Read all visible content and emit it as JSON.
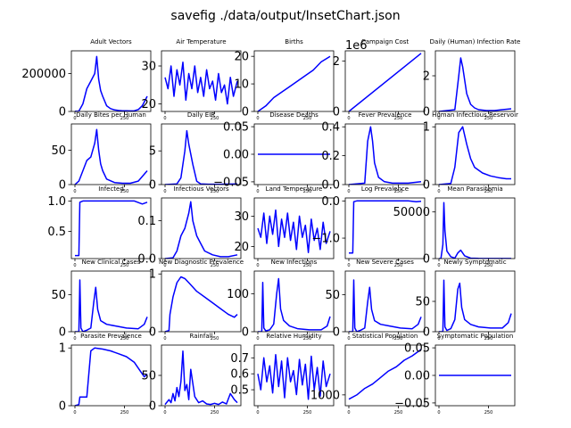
{
  "figure": {
    "suptitle": "savefig ./data/output/InsetChart.json"
  },
  "chart_data": [
    {
      "type": "line",
      "title": "Adult Vectors",
      "ylim": [
        0,
        320000
      ],
      "yticks": [
        0,
        200000
      ],
      "ytick_labels": [
        "0",
        "200000"
      ],
      "x": [
        0,
        20,
        40,
        60,
        80,
        100,
        110,
        120,
        130,
        140,
        160,
        180,
        200,
        220,
        240,
        260,
        280,
        300,
        320,
        340,
        365
      ],
      "values": [
        500,
        2000,
        40000,
        120000,
        160000,
        200000,
        290000,
        170000,
        110000,
        80000,
        30000,
        15000,
        8000,
        5000,
        4000,
        3500,
        3000,
        4000,
        10000,
        30000,
        80000
      ]
    },
    {
      "type": "line",
      "title": "Air Temperature",
      "ylim": [
        18,
        34
      ],
      "yticks": [
        20,
        30
      ],
      "ytick_labels": [
        "20",
        "30"
      ],
      "x": [
        0,
        15,
        30,
        45,
        60,
        75,
        90,
        105,
        120,
        135,
        150,
        165,
        180,
        195,
        210,
        225,
        240,
        255,
        270,
        285,
        300,
        315,
        330,
        345,
        365
      ],
      "values": [
        27,
        24,
        30,
        22,
        29,
        25,
        31,
        21,
        28,
        24,
        30,
        23,
        27,
        22,
        29,
        24,
        26,
        21,
        28,
        23,
        25,
        20,
        27,
        22,
        26
      ]
    },
    {
      "type": "line",
      "title": "Births",
      "ylim": [
        0,
        22
      ],
      "yticks": [
        0,
        10,
        20
      ],
      "ytick_labels": [
        "0",
        "10",
        "20"
      ],
      "x": [
        0,
        40,
        80,
        120,
        160,
        200,
        240,
        280,
        320,
        365
      ],
      "values": [
        0,
        2,
        5,
        7,
        9,
        11,
        13,
        15,
        18,
        20
      ]
    },
    {
      "type": "line",
      "title": "Campaign Cost",
      "ylim": [
        0,
        2.4
      ],
      "yticks": [
        0,
        2
      ],
      "ytick_labels": [
        "0",
        "2"
      ],
      "offset_text": "1e6",
      "x": [
        0,
        365
      ],
      "values": [
        0,
        2.3
      ]
    },
    {
      "type": "line",
      "title": "Daily (Human) Infection Rate",
      "ylim": [
        0,
        3.4
      ],
      "yticks": [
        0,
        2
      ],
      "ytick_labels": [
        "0",
        "2"
      ],
      "x": [
        0,
        80,
        100,
        110,
        120,
        140,
        160,
        180,
        200,
        240,
        280,
        320,
        365
      ],
      "values": [
        0,
        0.1,
        2.0,
        3.0,
        2.5,
        1.0,
        0.4,
        0.2,
        0.1,
        0.05,
        0.05,
        0.1,
        0.15
      ]
    },
    {
      "type": "line",
      "title": "Daily Bites per Human",
      "ylim": [
        0,
        88
      ],
      "yticks": [
        0,
        50
      ],
      "ytick_labels": [
        "0",
        "50"
      ],
      "x": [
        0,
        20,
        40,
        60,
        80,
        100,
        110,
        120,
        130,
        140,
        160,
        200,
        240,
        280,
        320,
        365
      ],
      "values": [
        0,
        5,
        20,
        35,
        40,
        60,
        80,
        50,
        30,
        20,
        8,
        3,
        2,
        2,
        5,
        20
      ]
    },
    {
      "type": "line",
      "title": "Daily EIR",
      "ylim": [
        0,
        9
      ],
      "yticks": [
        0,
        5
      ],
      "ytick_labels": [
        "0",
        "5"
      ],
      "x": [
        0,
        60,
        80,
        100,
        110,
        120,
        140,
        160,
        180,
        220,
        280,
        365
      ],
      "values": [
        0,
        0.1,
        1.0,
        5.0,
        8.0,
        6.0,
        3.0,
        0.5,
        0.1,
        0.05,
        0.05,
        0.1
      ]
    },
    {
      "type": "line",
      "title": "Disease Deaths",
      "ylim": [
        -0.055,
        0.055
      ],
      "yticks": [
        -0.05,
        0.0,
        0.05
      ],
      "ytick_labels": [
        "−0.05",
        "0.00",
        "0.05"
      ],
      "x": [
        0,
        365
      ],
      "values": [
        0,
        0
      ]
    },
    {
      "type": "line",
      "title": "Fever Prevalence",
      "ylim": [
        0,
        0.42
      ],
      "yticks": [
        0,
        0.2,
        0.4
      ],
      "ytick_labels": [
        "0.0",
        "0.2",
        "0.4"
      ],
      "x": [
        0,
        80,
        95,
        110,
        120,
        130,
        150,
        180,
        220,
        260,
        300,
        365
      ],
      "values": [
        0,
        0.01,
        0.3,
        0.4,
        0.3,
        0.15,
        0.05,
        0.02,
        0.01,
        0.01,
        0.01,
        0.02
      ]
    },
    {
      "type": "line",
      "title": "Human Infectious Reservoir",
      "ylim": [
        0,
        1.05
      ],
      "yticks": [
        0,
        1
      ],
      "ytick_labels": [
        "0",
        "1"
      ],
      "x": [
        0,
        60,
        80,
        100,
        120,
        140,
        160,
        180,
        220,
        260,
        300,
        340,
        365
      ],
      "values": [
        0,
        0.02,
        0.3,
        0.9,
        1.0,
        0.7,
        0.45,
        0.3,
        0.2,
        0.15,
        0.12,
        0.1,
        0.1
      ]
    },
    {
      "type": "line",
      "title": "Infected",
      "ylim": [
        0.05,
        1.05
      ],
      "yticks": [
        0.5,
        1.0
      ],
      "ytick_labels": [
        "0.5",
        "1.0"
      ],
      "x": [
        0,
        20,
        25,
        40,
        100,
        200,
        300,
        340,
        365
      ],
      "values": [
        0.1,
        0.1,
        0.98,
        1.0,
        1.0,
        1.0,
        1.0,
        0.95,
        0.98
      ]
    },
    {
      "type": "line",
      "title": "Infectious Vectors",
      "ylim": [
        0,
        0.16
      ],
      "yticks": [
        0,
        0.1
      ],
      "ytick_labels": [
        "0.0",
        "0.1"
      ],
      "x": [
        0,
        40,
        60,
        80,
        100,
        120,
        130,
        140,
        160,
        180,
        200,
        240,
        280,
        320,
        365
      ],
      "values": [
        0,
        0.002,
        0.02,
        0.06,
        0.08,
        0.12,
        0.15,
        0.1,
        0.06,
        0.04,
        0.02,
        0.01,
        0.005,
        0.005,
        0.01
      ]
    },
    {
      "type": "line",
      "title": "Land Temperature",
      "ylim": [
        16,
        36
      ],
      "yticks": [
        20,
        30
      ],
      "ytick_labels": [
        "20",
        "30"
      ],
      "x": [
        0,
        15,
        30,
        45,
        60,
        75,
        90,
        105,
        120,
        135,
        150,
        165,
        180,
        195,
        210,
        225,
        240,
        255,
        270,
        285,
        300,
        315,
        330,
        345,
        365
      ],
      "values": [
        26,
        23,
        31,
        21,
        30,
        24,
        32,
        20,
        29,
        23,
        31,
        22,
        28,
        19,
        30,
        23,
        27,
        18,
        29,
        22,
        26,
        19,
        28,
        21,
        25
      ]
    },
    {
      "type": "line",
      "title": "Log Prevalence",
      "ylim": [
        -1.55,
        0.08
      ],
      "yticks": [
        -1.0,
        0.0
      ],
      "ytick_labels": [
        "−1.0",
        "0.0"
      ],
      "x": [
        0,
        20,
        25,
        40,
        100,
        200,
        300,
        340,
        365
      ],
      "values": [
        -1.4,
        -1.4,
        -0.02,
        0,
        0,
        0,
        0,
        -0.02,
        -0.01
      ]
    },
    {
      "type": "line",
      "title": "Mean Parasitemia",
      "ylim": [
        0,
        65000
      ],
      "yticks": [
        0,
        50000
      ],
      "ytick_labels": [
        "0",
        "50000"
      ],
      "x": [
        0,
        10,
        20,
        25,
        30,
        40,
        60,
        80,
        95,
        110,
        130,
        160,
        200,
        260,
        320,
        365
      ],
      "values": [
        0,
        0,
        15000,
        60000,
        30000,
        8000,
        2000,
        500,
        6000,
        9000,
        3000,
        500,
        200,
        100,
        100,
        100
      ]
    },
    {
      "type": "line",
      "title": "New Clinical Cases",
      "ylim": [
        0,
        82
      ],
      "yticks": [
        0,
        50
      ],
      "ytick_labels": [
        "0",
        "50"
      ],
      "x": [
        0,
        20,
        25,
        30,
        40,
        60,
        80,
        95,
        105,
        115,
        130,
        160,
        200,
        260,
        320,
        350,
        365
      ],
      "values": [
        0,
        0,
        70,
        5,
        0,
        2,
        5,
        40,
        60,
        30,
        15,
        10,
        8,
        5,
        4,
        10,
        20
      ]
    },
    {
      "type": "line",
      "title": "New Diagnostic Prevalence",
      "ylim": [
        0,
        1.05
      ],
      "yticks": [
        0,
        1
      ],
      "ytick_labels": [
        "0",
        "1"
      ],
      "x": [
        0,
        20,
        25,
        40,
        60,
        80,
        100,
        120,
        160,
        200,
        240,
        280,
        320,
        350,
        365
      ],
      "values": [
        0,
        0.02,
        0.3,
        0.6,
        0.85,
        0.95,
        0.92,
        0.85,
        0.7,
        0.6,
        0.5,
        0.4,
        0.3,
        0.25,
        0.3
      ]
    },
    {
      "type": "line",
      "title": "New Infections",
      "ylim": [
        0,
        160
      ],
      "yticks": [
        0,
        100
      ],
      "ytick_labels": [
        "0",
        "100"
      ],
      "x": [
        0,
        20,
        25,
        30,
        40,
        60,
        80,
        95,
        105,
        115,
        130,
        160,
        200,
        260,
        320,
        350,
        365
      ],
      "values": [
        0,
        0,
        130,
        10,
        2,
        5,
        20,
        100,
        140,
        60,
        30,
        15,
        8,
        5,
        5,
        15,
        40
      ]
    },
    {
      "type": "line",
      "title": "New Severe Cases",
      "ylim": [
        0,
        82
      ],
      "yticks": [
        0,
        50
      ],
      "ytick_labels": [
        "0",
        "50"
      ],
      "x": [
        0,
        20,
        25,
        30,
        40,
        60,
        80,
        95,
        105,
        115,
        130,
        160,
        200,
        260,
        320,
        350,
        365
      ],
      "values": [
        0,
        0,
        70,
        5,
        0,
        2,
        5,
        40,
        60,
        30,
        15,
        10,
        8,
        5,
        4,
        10,
        20
      ]
    },
    {
      "type": "line",
      "title": "Newly Symptomatic",
      "ylim": [
        0,
        100
      ],
      "yticks": [
        0,
        50
      ],
      "ytick_labels": [
        "0",
        "50"
      ],
      "x": [
        0,
        20,
        25,
        30,
        40,
        60,
        80,
        95,
        105,
        115,
        130,
        160,
        200,
        260,
        320,
        350,
        365
      ],
      "values": [
        0,
        0,
        85,
        8,
        2,
        5,
        20,
        70,
        80,
        40,
        20,
        12,
        8,
        6,
        6,
        15,
        30
      ]
    },
    {
      "type": "line",
      "title": "Parasite Prevalence",
      "ylim": [
        0,
        1.05
      ],
      "yticks": [
        0,
        1
      ],
      "ytick_labels": [
        "0",
        "1"
      ],
      "x": [
        0,
        20,
        25,
        40,
        60,
        80,
        100,
        140,
        180,
        220,
        260,
        300,
        330,
        350,
        365
      ],
      "values": [
        0,
        0.02,
        0.15,
        0.15,
        0.15,
        0.95,
        1.0,
        0.98,
        0.95,
        0.9,
        0.85,
        0.75,
        0.6,
        0.5,
        0.55
      ]
    },
    {
      "type": "line",
      "title": "Rainfall",
      "ylim": [
        0,
        100
      ],
      "yticks": [
        0,
        50
      ],
      "ytick_labels": [
        "0",
        "50"
      ],
      "x": [
        0,
        20,
        30,
        40,
        50,
        60,
        70,
        80,
        90,
        100,
        110,
        120,
        130,
        150,
        170,
        190,
        210,
        230,
        250,
        270,
        290,
        310,
        330,
        350,
        365
      ],
      "values": [
        2,
        10,
        5,
        20,
        8,
        30,
        15,
        40,
        90,
        25,
        35,
        10,
        60,
        15,
        5,
        8,
        3,
        2,
        4,
        2,
        6,
        3,
        20,
        10,
        5
      ]
    },
    {
      "type": "line",
      "title": "Relative Humidity",
      "ylim": [
        0.4,
        0.78
      ],
      "yticks": [
        0.5,
        0.6,
        0.7
      ],
      "ytick_labels": [
        "0.5",
        "0.6",
        "0.7"
      ],
      "x": [
        0,
        15,
        30,
        45,
        60,
        75,
        90,
        105,
        120,
        135,
        150,
        165,
        180,
        195,
        210,
        225,
        240,
        255,
        270,
        285,
        300,
        315,
        330,
        345,
        365
      ],
      "values": [
        0.6,
        0.5,
        0.7,
        0.55,
        0.65,
        0.48,
        0.72,
        0.52,
        0.68,
        0.45,
        0.7,
        0.55,
        0.62,
        0.47,
        0.69,
        0.53,
        0.66,
        0.44,
        0.71,
        0.5,
        0.64,
        0.46,
        0.68,
        0.52,
        0.6
      ]
    },
    {
      "type": "line",
      "title": "Statistical Population",
      "ylim": [
        995,
        1023
      ],
      "yticks": [
        1000
      ],
      "ytick_labels": [
        "1000"
      ],
      "x": [
        0,
        40,
        80,
        120,
        160,
        200,
        240,
        280,
        320,
        365
      ],
      "values": [
        998,
        1000,
        1003,
        1005,
        1008,
        1011,
        1013,
        1016,
        1018,
        1021
      ]
    },
    {
      "type": "line",
      "title": "Symptomatic Population",
      "ylim": [
        -0.055,
        0.055
      ],
      "yticks": [
        -0.05,
        0.0,
        0.05
      ],
      "ytick_labels": [
        "−0.05",
        "0.00",
        "0.05"
      ],
      "x": [
        0,
        365
      ],
      "values": [
        0,
        0
      ]
    }
  ],
  "xaxis": {
    "xlim": [
      -18,
      383
    ],
    "xticks": [
      0,
      250
    ],
    "xtick_labels": [
      "0",
      "250"
    ]
  },
  "style": {
    "line_color": "#0000ff",
    "axes_color": "#000000",
    "background": "#ffffff"
  }
}
